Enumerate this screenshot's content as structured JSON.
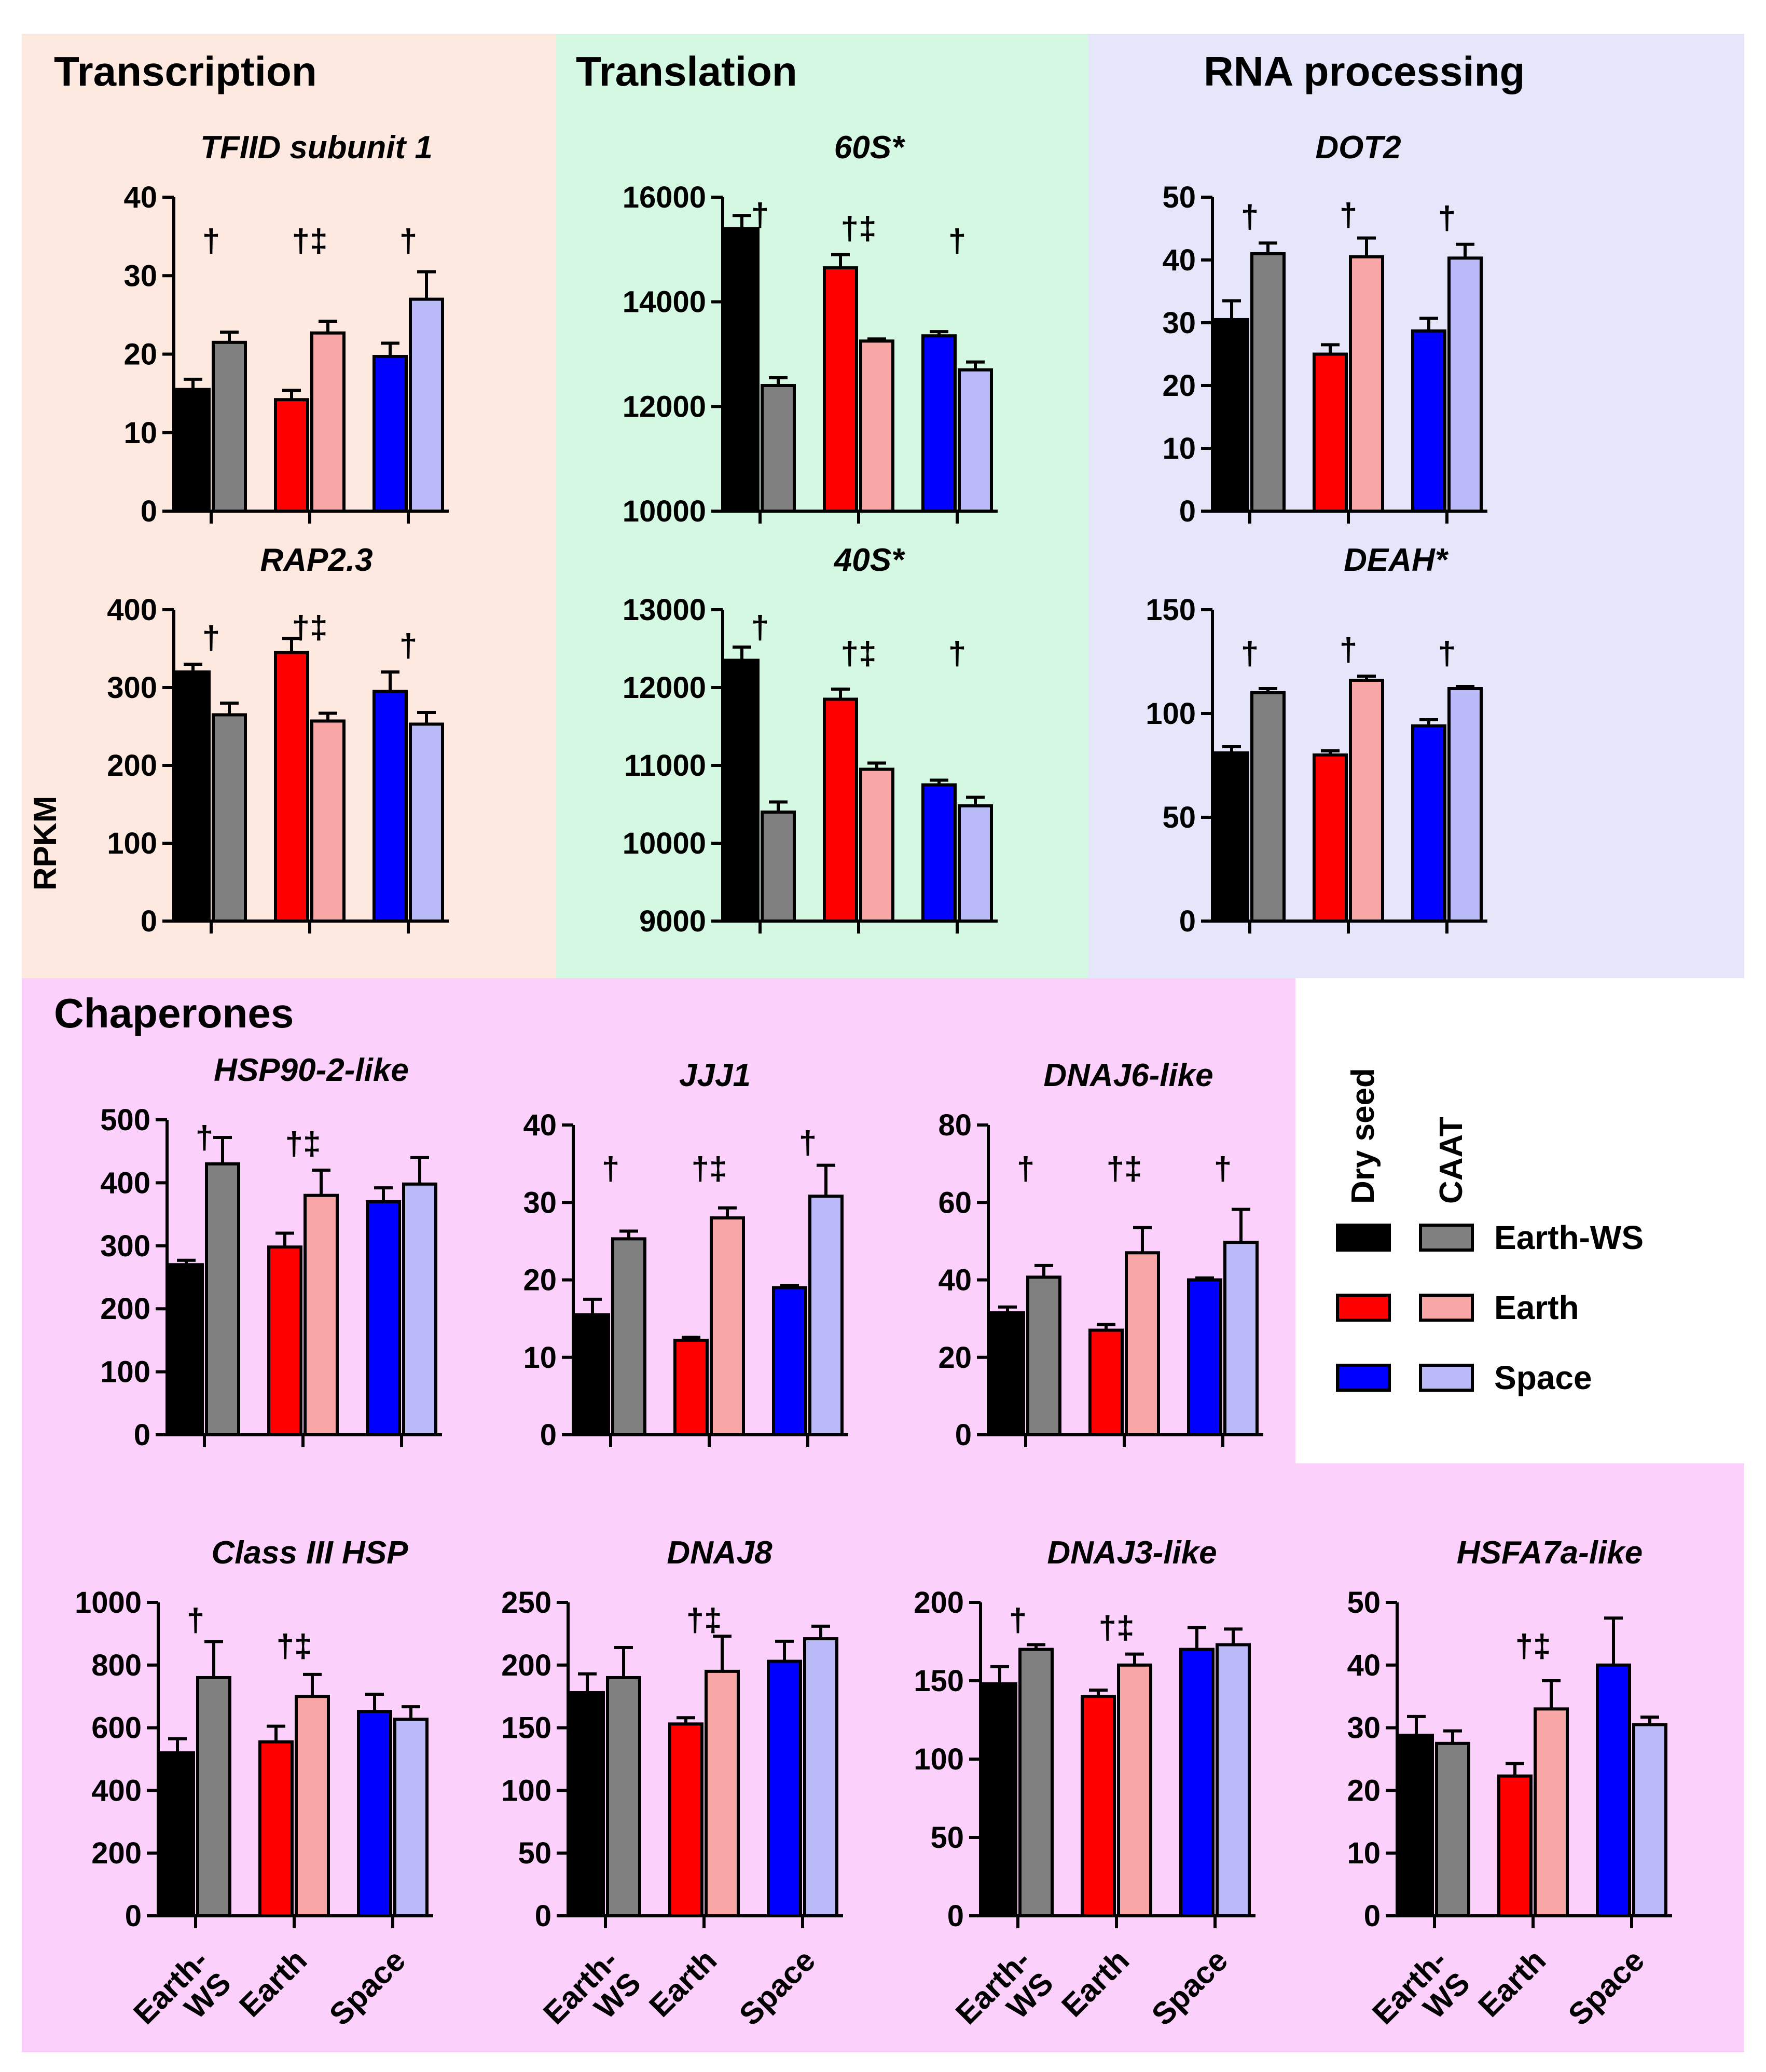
{
  "colors": {
    "transcription_bg": "#fde9e0",
    "translation_bg": "#d5f8e3",
    "rna_bg": "#e6e6fb",
    "chaperone_bg": "#fbd1fb",
    "earthws_dry": "#000000",
    "earthws_caat": "#808080",
    "earth_dry": "#ff0000",
    "earth_caat": "#f8a6a6",
    "space_dry": "#0000ff",
    "space_caat": "#babaf8"
  },
  "sections": {
    "transcription": "Transcription",
    "translation": "Translation",
    "rna_processing": "RNA processing",
    "chaperones": "Chaperones"
  },
  "y_axis_label": "RPKM",
  "legend": {
    "col_dry": "Dry seed",
    "col_caat": "CAAT",
    "entries": [
      "Earth-WS",
      "Earth",
      "Space"
    ]
  },
  "x_group_labels": [
    [
      "Earth-",
      "WS"
    ],
    [
      "Earth"
    ],
    [
      "Space"
    ]
  ],
  "chart_data": [
    {
      "id": "tfiid",
      "type": "bar",
      "title": "TFIID subunit 1",
      "categories": [
        "Earth-WS",
        "Earth",
        "Space"
      ],
      "series": [
        {
          "name": "Dry seed",
          "values": [
            15.5,
            14.2,
            19.7
          ],
          "errors": [
            1.3,
            1.2,
            1.7
          ]
        },
        {
          "name": "CAAT",
          "values": [
            21.5,
            22.7,
            27.0
          ],
          "errors": [
            1.3,
            1.5,
            3.5
          ]
        }
      ],
      "ylim": [
        0,
        40
      ],
      "yticks": [
        "0",
        "10",
        "20",
        "30",
        "40"
      ],
      "sig": [
        "†",
        "†‡",
        "†"
      ]
    },
    {
      "id": "rap",
      "type": "bar",
      "title": "RAP2.3",
      "categories": [
        "Earth-WS",
        "Earth",
        "Space"
      ],
      "series": [
        {
          "name": "Dry seed",
          "values": [
            320,
            345,
            295
          ],
          "errors": [
            10,
            18,
            25
          ]
        },
        {
          "name": "CAAT",
          "values": [
            265,
            257,
            253
          ],
          "errors": [
            15,
            10,
            15
          ]
        }
      ],
      "ylim": [
        0,
        400
      ],
      "yticks": [
        "0",
        "100",
        "200",
        "300",
        "400"
      ],
      "sig": [
        "†",
        "†‡",
        "†"
      ]
    },
    {
      "id": "s60",
      "type": "bar",
      "title": "60S*",
      "categories": [
        "Earth-WS",
        "Earth",
        "Space"
      ],
      "series": [
        {
          "name": "Dry seed",
          "values": [
            15400,
            14650,
            13350
          ],
          "errors": [
            250,
            250,
            80
          ]
        },
        {
          "name": "CAAT",
          "values": [
            12400,
            13250,
            12700
          ],
          "errors": [
            150,
            40,
            150
          ]
        }
      ],
      "ylim": [
        10000,
        16000
      ],
      "yticks": [
        "10000",
        "12000",
        "14000",
        "16000"
      ],
      "sig": [
        "†",
        "†‡",
        "†"
      ]
    },
    {
      "id": "s40",
      "type": "bar",
      "title": "40S*",
      "categories": [
        "Earth-WS",
        "Earth",
        "Space"
      ],
      "series": [
        {
          "name": "Dry seed",
          "values": [
            12350,
            11850,
            10750
          ],
          "errors": [
            170,
            130,
            60
          ]
        },
        {
          "name": "CAAT",
          "values": [
            10400,
            10950,
            10480
          ],
          "errors": [
            130,
            80,
            110
          ]
        }
      ],
      "ylim": [
        9000,
        13000
      ],
      "yticks": [
        "9000",
        "10000",
        "11000",
        "12000",
        "13000"
      ],
      "sig": [
        "†",
        "†‡",
        "†"
      ]
    },
    {
      "id": "dot2",
      "type": "bar",
      "title": "DOT2",
      "categories": [
        "Earth-WS",
        "Earth",
        "Space"
      ],
      "series": [
        {
          "name": "Dry seed",
          "values": [
            30.5,
            25.0,
            28.7
          ],
          "errors": [
            3.0,
            1.5,
            2.0
          ]
        },
        {
          "name": "CAAT",
          "values": [
            41.0,
            40.5,
            40.3
          ],
          "errors": [
            1.7,
            3.0,
            2.2
          ]
        }
      ],
      "ylim": [
        0,
        50
      ],
      "yticks": [
        "0",
        "10",
        "20",
        "30",
        "40",
        "50"
      ],
      "sig": [
        "†",
        "†",
        "†"
      ]
    },
    {
      "id": "deah",
      "type": "bar",
      "title": "DEAH*",
      "categories": [
        "Earth-WS",
        "Earth",
        "Space"
      ],
      "series": [
        {
          "name": "Dry seed",
          "values": [
            81,
            80,
            94
          ],
          "errors": [
            3,
            2,
            3
          ]
        },
        {
          "name": "CAAT",
          "values": [
            110,
            116,
            112
          ],
          "errors": [
            2,
            2,
            1
          ]
        }
      ],
      "ylim": [
        0,
        150
      ],
      "yticks": [
        "0",
        "50",
        "100",
        "150"
      ],
      "sig": [
        "†",
        "†",
        "†"
      ]
    },
    {
      "id": "hsp90",
      "type": "bar",
      "title": "HSP90-2-like",
      "categories": [
        "Earth-WS",
        "Earth",
        "Space"
      ],
      "series": [
        {
          "name": "Dry seed",
          "values": [
            270,
            298,
            370
          ],
          "errors": [
            7,
            22,
            22
          ]
        },
        {
          "name": "CAAT",
          "values": [
            430,
            380,
            398
          ],
          "errors": [
            42,
            40,
            42
          ]
        }
      ],
      "ylim": [
        0,
        500
      ],
      "yticks": [
        "0",
        "100",
        "200",
        "300",
        "400",
        "500"
      ],
      "sig": [
        "†",
        "†‡",
        ""
      ]
    },
    {
      "id": "jjj1",
      "type": "bar",
      "title": "JJJ1",
      "categories": [
        "Earth-WS",
        "Earth",
        "Space"
      ],
      "series": [
        {
          "name": "Dry seed",
          "values": [
            15.5,
            12.2,
            19.0
          ],
          "errors": [
            2.0,
            0.4,
            0.3
          ]
        },
        {
          "name": "CAAT",
          "values": [
            25.3,
            28.0,
            30.8
          ],
          "errors": [
            1.0,
            1.3,
            4.0
          ]
        }
      ],
      "ylim": [
        0,
        40
      ],
      "yticks": [
        "0",
        "10",
        "20",
        "30",
        "40"
      ],
      "sig": [
        "†",
        "†‡",
        "†"
      ]
    },
    {
      "id": "dnaj6",
      "type": "bar",
      "title": "DNAJ6-like",
      "categories": [
        "Earth-WS",
        "Earth",
        "Space"
      ],
      "series": [
        {
          "name": "Dry seed",
          "values": [
            31.5,
            27.0,
            40.0
          ],
          "errors": [
            1.5,
            1.5,
            0.5
          ]
        },
        {
          "name": "CAAT",
          "values": [
            40.7,
            47.0,
            49.7
          ],
          "errors": [
            3.0,
            6.5,
            8.5
          ]
        }
      ],
      "ylim": [
        0,
        80
      ],
      "yticks": [
        "0",
        "20",
        "40",
        "60",
        "80"
      ],
      "sig": [
        "†",
        "†‡",
        "†"
      ]
    },
    {
      "id": "class3",
      "type": "bar",
      "title": "Class III HSP",
      "categories": [
        "Earth-WS",
        "Earth",
        "Space"
      ],
      "series": [
        {
          "name": "Dry seed",
          "values": [
            520,
            555,
            652
          ],
          "errors": [
            45,
            50,
            55
          ]
        },
        {
          "name": "CAAT",
          "values": [
            760,
            700,
            627
          ],
          "errors": [
            115,
            70,
            40
          ]
        }
      ],
      "ylim": [
        0,
        1000
      ],
      "yticks": [
        "0",
        "200",
        "400",
        "600",
        "800",
        "1000"
      ],
      "sig": [
        "†",
        "†‡",
        ""
      ]
    },
    {
      "id": "dnaj8",
      "type": "bar",
      "title": "DNAJ8",
      "categories": [
        "Earth-WS",
        "Earth",
        "Space"
      ],
      "series": [
        {
          "name": "Dry seed",
          "values": [
            178,
            153,
            203
          ],
          "errors": [
            15,
            5,
            16
          ]
        },
        {
          "name": "CAAT",
          "values": [
            190,
            195,
            221
          ],
          "errors": [
            24,
            28,
            10
          ]
        }
      ],
      "ylim": [
        0,
        250
      ],
      "yticks": [
        "0",
        "50",
        "100",
        "150",
        "200",
        "250"
      ],
      "sig": [
        "",
        "†‡",
        ""
      ]
    },
    {
      "id": "dnaj3",
      "type": "bar",
      "title": "DNAJ3-like",
      "categories": [
        "Earth-WS",
        "Earth",
        "Space"
      ],
      "series": [
        {
          "name": "Dry seed",
          "values": [
            148,
            140,
            170
          ],
          "errors": [
            11,
            4,
            14
          ]
        },
        {
          "name": "CAAT",
          "values": [
            170,
            160,
            173
          ],
          "errors": [
            3,
            7,
            10
          ]
        }
      ],
      "ylim": [
        0,
        200
      ],
      "yticks": [
        "0",
        "50",
        "100",
        "150",
        "200"
      ],
      "sig": [
        "†",
        "†‡",
        ""
      ]
    },
    {
      "id": "hsfa7a",
      "type": "bar",
      "title": "HSFA7a-like",
      "categories": [
        "Earth-WS",
        "Earth",
        "Space"
      ],
      "series": [
        {
          "name": "Dry seed",
          "values": [
            28.8,
            22.3,
            40.0
          ],
          "errors": [
            3.0,
            2.0,
            7.5
          ]
        },
        {
          "name": "CAAT",
          "values": [
            27.5,
            33.0,
            30.5
          ],
          "errors": [
            2.0,
            4.5,
            1.2
          ]
        }
      ],
      "ylim": [
        0,
        50
      ],
      "yticks": [
        "0",
        "10",
        "20",
        "30",
        "40",
        "50"
      ],
      "sig": [
        "",
        "†‡",
        ""
      ]
    }
  ]
}
